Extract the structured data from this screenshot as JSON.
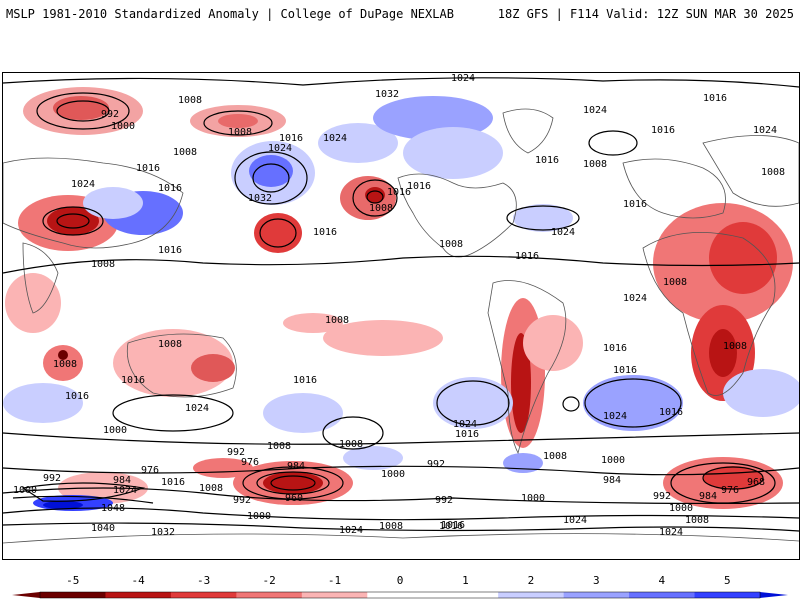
{
  "header": {
    "left_title": "MSLP 1981-2010 Standardized Anomaly | College of DuPage NEXLAB",
    "right_title": "18Z GFS | F114 Valid: 12Z SUN MAR 30 2025"
  },
  "map": {
    "projection": "global equirectangular",
    "contour_labels": [
      "1024",
      "1008",
      "992",
      "1000",
      "1032",
      "1024",
      "1016",
      "1008",
      "1016",
      "1016",
      "1024",
      "1024",
      "1032",
      "1016",
      "1008",
      "1016",
      "1024",
      "1016",
      "1008",
      "1016",
      "1024",
      "1008",
      "1008",
      "1008",
      "1016",
      "1016",
      "1016",
      "1024",
      "1008",
      "1016",
      "1008",
      "1016",
      "1024",
      "1016",
      "1024",
      "1008",
      "1016",
      "1008",
      "1008",
      "1008",
      "1016",
      "1016",
      "1024",
      "1016",
      "1000",
      "1024",
      "1016",
      "1000",
      "1008",
      "1000",
      "992",
      "1008",
      "992",
      "976",
      "984",
      "960",
      "992",
      "1000",
      "1008",
      "1016",
      "1024",
      "1032",
      "1040",
      "1048",
      "1024",
      "1016",
      "984",
      "976",
      "1000",
      "1008",
      "992",
      "984",
      "992",
      "1008",
      "1000",
      "992",
      "984",
      "976",
      "968",
      "1000",
      "1008",
      "1016",
      "1024",
      "1016",
      "1024"
    ]
  },
  "colorbar": {
    "ticks": [
      "-5",
      "-4",
      "-3",
      "-2",
      "-1",
      "0",
      "1",
      "2",
      "3",
      "4",
      "5"
    ],
    "colors": {
      "neg5": "#6b0000",
      "neg4": "#b81414",
      "neg3": "#e03a3a",
      "neg2": "#f07676",
      "neg1": "#fbb4b4",
      "zero": "#ffffff",
      "pos1": "#c9ceff",
      "pos2": "#9aa2ff",
      "pos3": "#6670ff",
      "pos4": "#3340ff",
      "pos5": "#0010d8"
    }
  }
}
